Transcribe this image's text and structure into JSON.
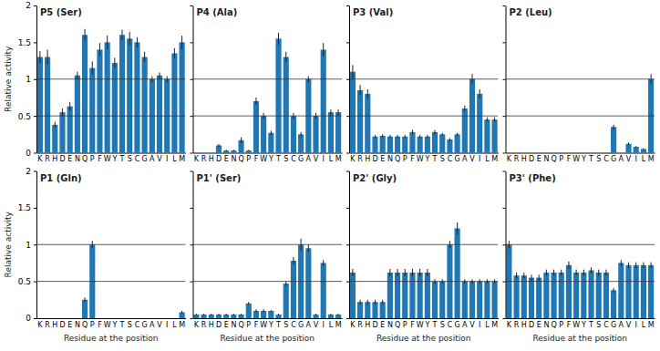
{
  "chart_data": [
    {
      "type": "bar",
      "title": "P5 (Ser)",
      "ylabel": "Relative activity",
      "categories": [
        "K",
        "R",
        "H",
        "D",
        "E",
        "N",
        "Q",
        "P",
        "F",
        "W",
        "Y",
        "T",
        "S",
        "C",
        "G",
        "A",
        "V",
        "I",
        "L",
        "M"
      ],
      "values": [
        1.3,
        1.3,
        0.38,
        0.55,
        0.63,
        1.05,
        1.6,
        1.15,
        1.4,
        1.5,
        1.22,
        1.6,
        1.55,
        1.5,
        1.3,
        1.0,
        1.05,
        1.0,
        1.35,
        1.5
      ],
      "errors": [
        0.08,
        0.1,
        0.04,
        0.05,
        0.06,
        0.05,
        0.08,
        0.09,
        0.09,
        0.09,
        0.07,
        0.07,
        0.09,
        0.07,
        0.07,
        0.04,
        0.04,
        0.04,
        0.07,
        0.09
      ],
      "hlines": [
        0.5,
        1.0
      ],
      "ylim": [
        0,
        2.0
      ],
      "yticks": [
        0,
        0.5,
        1,
        1.5,
        2
      ]
    },
    {
      "type": "bar",
      "title": "P4 (Ala)",
      "categories": [
        "K",
        "R",
        "H",
        "D",
        "E",
        "N",
        "Q",
        "P",
        "F",
        "W",
        "Y",
        "T",
        "S",
        "C",
        "G",
        "A",
        "V",
        "I",
        "L",
        "M"
      ],
      "values": [
        0.0,
        0.0,
        0.0,
        0.1,
        0.03,
        0.03,
        0.17,
        0.03,
        0.7,
        0.5,
        0.27,
        1.55,
        1.3,
        0.5,
        0.25,
        1.0,
        0.5,
        1.4,
        0.55,
        0.55
      ],
      "errors": [
        0.0,
        0.0,
        0.0,
        0.02,
        0.01,
        0.01,
        0.04,
        0.01,
        0.05,
        0.04,
        0.03,
        0.08,
        0.07,
        0.04,
        0.03,
        0.04,
        0.04,
        0.09,
        0.04,
        0.04
      ],
      "hlines": [
        0.5,
        1.0
      ],
      "ylim": [
        0,
        2.0
      ],
      "yticks": [
        0,
        0.5,
        1,
        1.5,
        2
      ],
      "tick_labels": "x"
    },
    {
      "type": "bar",
      "title": "P3 (Val)",
      "categories": [
        "K",
        "R",
        "H",
        "D",
        "E",
        "N",
        "Q",
        "P",
        "F",
        "W",
        "Y",
        "T",
        "S",
        "C",
        "G",
        "A",
        "V",
        "I",
        "L",
        "M"
      ],
      "values": [
        1.1,
        0.85,
        0.8,
        0.22,
        0.23,
        0.22,
        0.22,
        0.22,
        0.28,
        0.22,
        0.22,
        0.28,
        0.25,
        0.18,
        0.25,
        0.6,
        1.0,
        0.8,
        0.45,
        0.45
      ],
      "errors": [
        0.09,
        0.07,
        0.06,
        0.02,
        0.02,
        0.02,
        0.02,
        0.02,
        0.03,
        0.02,
        0.02,
        0.03,
        0.02,
        0.02,
        0.02,
        0.04,
        0.07,
        0.06,
        0.03,
        0.03
      ],
      "hlines": [
        0.5,
        1.0
      ],
      "ylim": [
        0,
        2.0
      ],
      "yticks": [
        0,
        0.5,
        1,
        1.5,
        2
      ],
      "tick_labels": "x"
    },
    {
      "type": "bar",
      "title": "P2 (Leu)",
      "categories": [
        "K",
        "R",
        "H",
        "D",
        "E",
        "N",
        "Q",
        "P",
        "F",
        "W",
        "Y",
        "T",
        "S",
        "C",
        "G",
        "A",
        "V",
        "I",
        "L",
        "M"
      ],
      "values": [
        0.0,
        0.0,
        0.0,
        0.0,
        0.0,
        0.0,
        0.0,
        0.0,
        0.0,
        0.0,
        0.0,
        0.0,
        0.0,
        0.0,
        0.35,
        0.0,
        0.12,
        0.08,
        0.05,
        1.0
      ],
      "errors": [
        0.0,
        0.0,
        0.0,
        0.0,
        0.0,
        0.0,
        0.0,
        0.0,
        0.0,
        0.0,
        0.0,
        0.0,
        0.0,
        0.0,
        0.03,
        0.0,
        0.02,
        0.01,
        0.01,
        0.07
      ],
      "hlines": [
        0.5,
        1.0
      ],
      "ylim": [
        0,
        2.0
      ],
      "yticks": [
        0,
        0.5,
        1,
        1.5,
        2
      ],
      "tick_labels": "x"
    },
    {
      "type": "bar",
      "title": "P1 (Gln)",
      "ylabel": "Relative activity",
      "xlabel": "Residue at the position",
      "categories": [
        "K",
        "R",
        "H",
        "D",
        "E",
        "N",
        "Q",
        "P",
        "F",
        "W",
        "Y",
        "T",
        "S",
        "C",
        "G",
        "A",
        "V",
        "I",
        "L",
        "M"
      ],
      "values": [
        0.0,
        0.0,
        0.0,
        0.0,
        0.0,
        0.0,
        0.25,
        1.0,
        0.0,
        0.0,
        0.0,
        0.0,
        0.0,
        0.0,
        0.0,
        0.0,
        0.0,
        0.0,
        0.0,
        0.08
      ],
      "errors": [
        0.0,
        0.0,
        0.0,
        0.0,
        0.0,
        0.0,
        0.03,
        0.05,
        0.0,
        0.0,
        0.0,
        0.0,
        0.0,
        0.0,
        0.0,
        0.0,
        0.0,
        0.0,
        0.0,
        0.02
      ],
      "hlines": [
        0.5,
        1.0
      ],
      "ylim": [
        0,
        2.0
      ],
      "yticks": [
        0,
        0.5,
        1,
        1.5,
        2
      ]
    },
    {
      "type": "bar",
      "title": "P1' (Ser)",
      "xlabel": "Residue at the position",
      "categories": [
        "K",
        "R",
        "H",
        "D",
        "E",
        "N",
        "Q",
        "P",
        "F",
        "W",
        "Y",
        "T",
        "S",
        "C",
        "G",
        "A",
        "V",
        "I",
        "L",
        "M"
      ],
      "values": [
        0.05,
        0.05,
        0.05,
        0.05,
        0.05,
        0.05,
        0.05,
        0.2,
        0.1,
        0.1,
        0.1,
        0.05,
        0.47,
        0.78,
        1.0,
        0.95,
        0.05,
        0.75,
        0.05,
        0.05
      ],
      "errors": [
        0.01,
        0.01,
        0.01,
        0.01,
        0.01,
        0.01,
        0.01,
        0.02,
        0.02,
        0.02,
        0.01,
        0.01,
        0.03,
        0.05,
        0.08,
        0.05,
        0.01,
        0.04,
        0.01,
        0.01
      ],
      "hlines": [
        0.5,
        1.0
      ],
      "ylim": [
        0,
        2.0
      ],
      "yticks": [
        0,
        0.5,
        1,
        1.5,
        2
      ],
      "tick_labels": "x"
    },
    {
      "type": "bar",
      "title": "P2' (Gly)",
      "xlabel": "Residue at the position",
      "categories": [
        "K",
        "R",
        "H",
        "D",
        "E",
        "N",
        "Q",
        "P",
        "F",
        "W",
        "Y",
        "T",
        "S",
        "C",
        "G",
        "A",
        "V",
        "I",
        "L",
        "M"
      ],
      "values": [
        0.62,
        0.22,
        0.22,
        0.22,
        0.22,
        0.62,
        0.62,
        0.62,
        0.62,
        0.62,
        0.62,
        0.5,
        0.5,
        1.0,
        1.22,
        0.5,
        0.5,
        0.5,
        0.5,
        0.5
      ],
      "errors": [
        0.05,
        0.03,
        0.03,
        0.03,
        0.03,
        0.05,
        0.05,
        0.05,
        0.05,
        0.05,
        0.05,
        0.03,
        0.03,
        0.05,
        0.08,
        0.03,
        0.03,
        0.03,
        0.03,
        0.03
      ],
      "hlines": [
        0.5,
        1.0
      ],
      "ylim": [
        0,
        2.0
      ],
      "yticks": [
        0,
        0.5,
        1,
        1.5,
        2
      ],
      "tick_labels": "x"
    },
    {
      "type": "bar",
      "title": "P3' (Phe)",
      "xlabel": "Residue at the position",
      "categories": [
        "K",
        "R",
        "H",
        "D",
        "E",
        "N",
        "Q",
        "P",
        "F",
        "W",
        "Y",
        "T",
        "S",
        "C",
        "G",
        "A",
        "V",
        "I",
        "L",
        "M"
      ],
      "values": [
        1.0,
        0.58,
        0.58,
        0.55,
        0.55,
        0.62,
        0.62,
        0.62,
        0.72,
        0.62,
        0.62,
        0.65,
        0.62,
        0.62,
        0.38,
        0.75,
        0.72,
        0.72,
        0.72,
        0.72
      ],
      "errors": [
        0.05,
        0.04,
        0.04,
        0.04,
        0.04,
        0.04,
        0.04,
        0.04,
        0.05,
        0.04,
        0.04,
        0.04,
        0.04,
        0.04,
        0.03,
        0.04,
        0.04,
        0.04,
        0.04,
        0.04
      ],
      "hlines": [
        0.5,
        1.0
      ],
      "ylim": [
        0,
        2.0
      ],
      "yticks": [
        0,
        0.5,
        1,
        1.5,
        2
      ],
      "tick_labels": "x"
    }
  ]
}
